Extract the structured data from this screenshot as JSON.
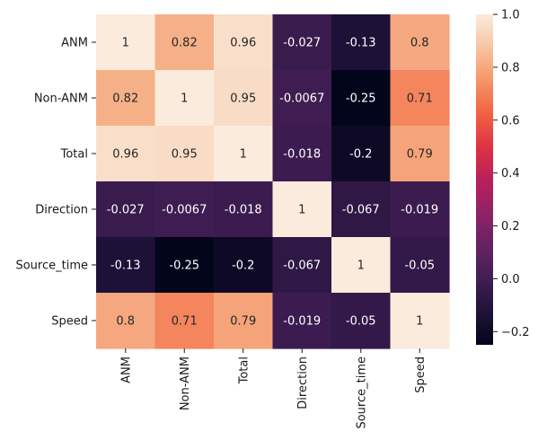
{
  "chart_data": {
    "type": "heatmap",
    "title": "",
    "xlabel": "",
    "ylabel": "",
    "rows": [
      "ANM",
      "Non-ANM",
      "Total",
      "Direction",
      "Source_time",
      "Speed"
    ],
    "columns": [
      "ANM",
      "Non-ANM",
      "Total",
      "Direction",
      "Source_time",
      "Speed"
    ],
    "values": [
      [
        1,
        0.82,
        0.96,
        -0.027,
        -0.13,
        0.8
      ],
      [
        0.82,
        1,
        0.95,
        -0.0067,
        -0.25,
        0.71
      ],
      [
        0.96,
        0.95,
        1,
        -0.018,
        -0.2,
        0.79
      ],
      [
        -0.027,
        -0.0067,
        -0.018,
        1,
        -0.067,
        -0.019
      ],
      [
        -0.13,
        -0.25,
        -0.2,
        -0.067,
        1,
        -0.05
      ],
      [
        0.8,
        0.71,
        0.79,
        -0.019,
        -0.05,
        1
      ]
    ],
    "cell_labels": [
      [
        "1",
        "0.82",
        "0.96",
        "-0.027",
        "-0.13",
        "0.8"
      ],
      [
        "0.82",
        "1",
        "0.95",
        "-0.0067",
        "-0.25",
        "0.71"
      ],
      [
        "0.96",
        "0.95",
        "1",
        "-0.018",
        "-0.2",
        "0.79"
      ],
      [
        "-0.027",
        "-0.0067",
        "-0.018",
        "1",
        "-0.067",
        "-0.019"
      ],
      [
        "-0.13",
        "-0.25",
        "-0.2",
        "-0.067",
        "1",
        "-0.05"
      ],
      [
        "0.8",
        "0.71",
        "0.79",
        "-0.019",
        "-0.05",
        "1"
      ]
    ],
    "colorbar": {
      "range": [
        -0.25,
        1.0
      ],
      "ticks": [
        -0.2,
        0.0,
        0.2,
        0.4,
        0.6,
        0.8,
        1.0
      ],
      "tick_labels": [
        "−0.2",
        "0.0",
        "0.2",
        "0.4",
        "0.6",
        "0.8",
        "1.0"
      ],
      "colormap": "rocket"
    },
    "grid": false
  }
}
